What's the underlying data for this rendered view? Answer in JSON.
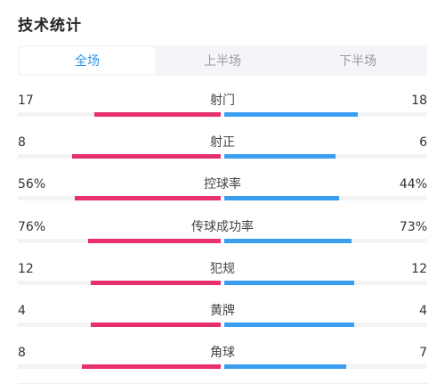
{
  "header": {
    "title": "技术统计"
  },
  "tabs": [
    {
      "label": "全场",
      "active": true
    },
    {
      "label": "上半场",
      "active": false
    },
    {
      "label": "下半场",
      "active": false
    }
  ],
  "colors": {
    "home": "#e8306e",
    "away": "#3a9ef0",
    "accent": "#2b94ee"
  },
  "stats": [
    {
      "label": "射门",
      "home": "17",
      "away": "18",
      "home_share": 0.486,
      "away_share": 0.514
    },
    {
      "label": "射正",
      "home": "8",
      "away": "6",
      "home_share": 0.571,
      "away_share": 0.429
    },
    {
      "label": "控球率",
      "home": "56%",
      "away": "44%",
      "home_share": 0.56,
      "away_share": 0.44
    },
    {
      "label": "传球成功率",
      "home": "76%",
      "away": "73%",
      "home_share": 0.51,
      "away_share": 0.49
    },
    {
      "label": "犯规",
      "home": "12",
      "away": "12",
      "home_share": 0.5,
      "away_share": 0.5
    },
    {
      "label": "黄牌",
      "home": "4",
      "away": "4",
      "home_share": 0.5,
      "away_share": 0.5
    },
    {
      "label": "角球",
      "home": "8",
      "away": "7",
      "home_share": 0.533,
      "away_share": 0.467
    }
  ]
}
